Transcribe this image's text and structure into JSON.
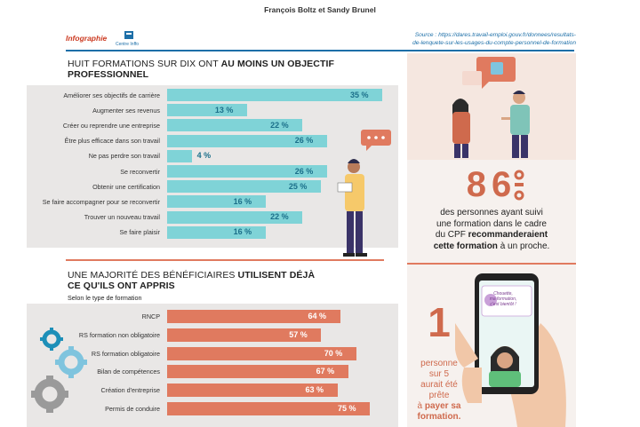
{
  "header": {
    "authors": "François Boltz et Sandy Brunel",
    "logo_text": "Infographie",
    "logo_sub": "Centre Inffo",
    "source_line1": "Source : https://dares.travail-emploi.gouv.fr/donnees/resultats-",
    "source_line2": "de-lenquete-sur-les-usages-du-compte-personnel-de-formation"
  },
  "section1": {
    "title_normal": "HUIT FORMATIONS SUR DIX ONT ",
    "title_bold": "AU MOINS UN OBJECTIF",
    "title_line2": "PROFESSIONNEL"
  },
  "section2": {
    "title_normal": "UNE MAJORITÉ DES BÉNÉFICIAIRES ",
    "title_bold": "UTILISENT DÉJÀ",
    "title_line2": "CE QU'ILS ONT APPRIS",
    "subtitle": "Selon le type de formation"
  },
  "chart_data": [
    {
      "type": "bar",
      "orientation": "horizontal",
      "title": "HUIT FORMATIONS SUR DIX ONT AU MOINS UN OBJECTIF PROFESSIONNEL",
      "categories": [
        "Améliorer ses objectifs de carrière",
        "Augmenter ses revenus",
        "Créer ou reprendre une entreprise",
        "Être plus efficace dans son travail",
        "Ne pas perdre son travail",
        "Se reconvertir",
        "Obtenir une certification",
        "Se faire accompagner pour se reconvertir",
        "Trouver un nouveau travail",
        "Se faire plaisir"
      ],
      "values": [
        35,
        13,
        22,
        26,
        4,
        26,
        25,
        16,
        22,
        16
      ],
      "value_labels": [
        "35 %",
        "13 %",
        "22 %",
        "26 %",
        "4 %",
        "26 %",
        "25 %",
        "16 %",
        "22 %",
        "16 %"
      ],
      "unit": "%",
      "xlim": [
        0,
        35
      ],
      "grid": false,
      "bar_color": "#7fd3d7",
      "label_color": "#1b6f8a"
    },
    {
      "type": "bar",
      "orientation": "horizontal",
      "title": "UNE MAJORITÉ DES BÉNÉFICIAIRES UTILISENT DÉJÀ CE QU'ILS ONT APPRIS",
      "subtitle": "Selon le type de formation",
      "categories": [
        "RNCP",
        "RS formation non obligatoire",
        "RS formation obligatoire",
        "Bilan de compétences",
        "Création d'entreprise",
        "Permis de conduire"
      ],
      "values": [
        64,
        57,
        70,
        67,
        63,
        75
      ],
      "value_labels": [
        "64 %",
        "57 %",
        "70 %",
        "67 %",
        "63 %",
        "75 %"
      ],
      "unit": "%",
      "xlim": [
        0,
        75
      ],
      "grid": false,
      "bar_color": "#e07a5f",
      "label_color": "#ffffff"
    }
  ],
  "stat1": {
    "big": "86",
    "line1": "des personnes ayant suivi",
    "line2": "une formation dans le cadre",
    "line3_normal": "du CPF ",
    "line3_bold": "recommanderaient",
    "line4_bold": "cette formation",
    "line4_normal": " à un proche."
  },
  "stat2": {
    "big": "1",
    "line1": "personne",
    "line2": "sur 5",
    "line3": "aurait été",
    "line4": "prête",
    "line5_normal": "à ",
    "line5_bold": "payer sa",
    "line6_bold": "formation."
  },
  "phone_bubble": {
    "line1": "Chouette,",
    "line2": "ma formation,",
    "line3": "c'est bientôt !"
  },
  "colors": {
    "accent": "#cf6a4d",
    "teal": "#7fd3d7",
    "blue": "#1d6fa8",
    "band": "#e9e7e6"
  }
}
